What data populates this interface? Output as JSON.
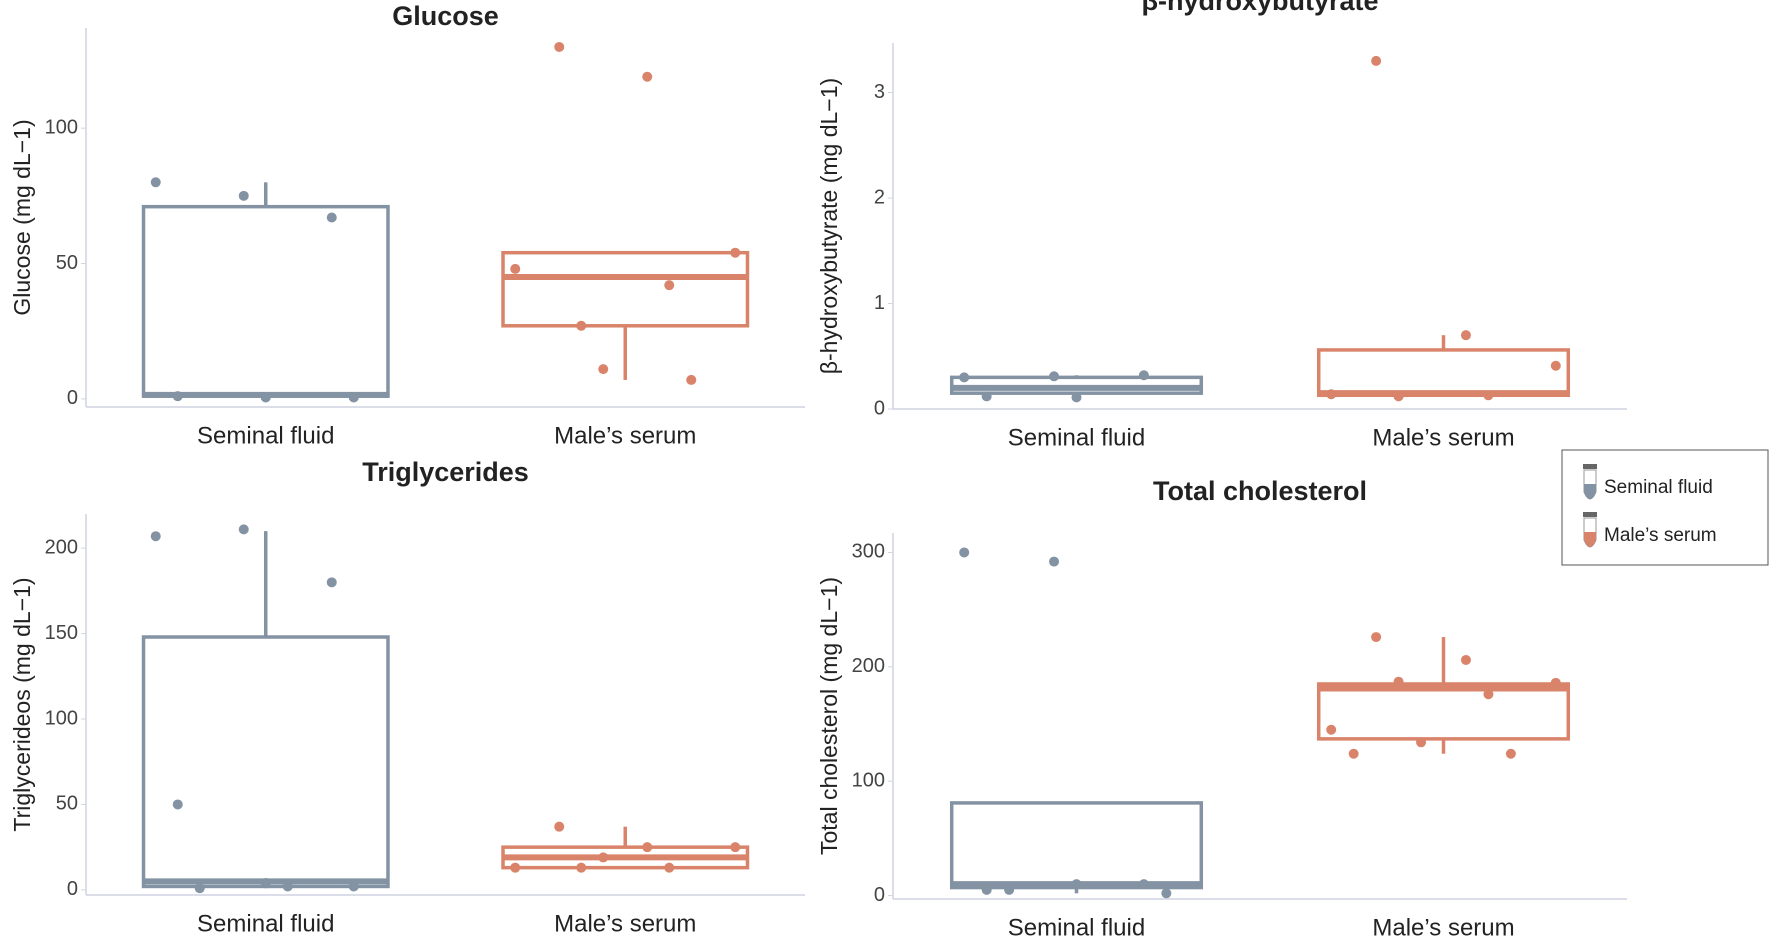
{
  "chart_data": [
    {
      "type": "box",
      "title": "Glucose",
      "ylabel": "Glucose (mg dL−1)",
      "categories": [
        "Seminal fluid",
        "Male’s serum"
      ],
      "ylim": [
        -3,
        137
      ],
      "yticks": [
        0,
        50,
        100
      ],
      "boxes": [
        {
          "color": "#8393a3",
          "q1": 1,
          "median": 1.5,
          "q3": 71,
          "whisker_low": 0,
          "whisker_high": 80,
          "points": [
            80,
            75,
            67,
            1,
            0.5,
            0.5
          ]
        },
        {
          "color": "#d9846a",
          "q1": 27,
          "median": 45,
          "q3": 54,
          "whisker_low": 7,
          "whisker_high": 54,
          "points": [
            130,
            119,
            54,
            27,
            42,
            48,
            11,
            7
          ]
        }
      ]
    },
    {
      "type": "box",
      "title": "β-hydroxybutyrate",
      "ylabel": "β-hydroxybutyrate (mg dL−1)",
      "categories": [
        "Seminal fluid",
        "Male’s serum"
      ],
      "ylim": [
        0,
        3.47
      ],
      "yticks": [
        0,
        1,
        2,
        3
      ],
      "boxes": [
        {
          "color": "#8393a3",
          "q1": 0.15,
          "median": 0.2,
          "q3": 0.3,
          "whisker_low": 0.12,
          "whisker_high": 0.32,
          "points": [
            0.3,
            0.31,
            0.32,
            0.12,
            0.11
          ]
        },
        {
          "color": "#d9846a",
          "q1": 0.13,
          "median": 0.15,
          "q3": 0.56,
          "whisker_low": 0.12,
          "whisker_high": 0.7,
          "points": [
            3.3,
            0.7,
            0.41,
            0.12,
            0.13,
            0.14
          ]
        }
      ]
    },
    {
      "type": "box",
      "title": "Triglycerides",
      "ylabel": "Triglycerideos (mg dL−1)",
      "categories": [
        "Seminal fluid",
        "Male’s serum"
      ],
      "ylim": [
        -3,
        220
      ],
      "yticks": [
        0,
        50,
        100,
        150,
        200
      ],
      "boxes": [
        {
          "color": "#8393a3",
          "q1": 2,
          "median": 5,
          "q3": 148,
          "whisker_low": 1,
          "whisker_high": 210,
          "points": [
            207,
            211,
            180,
            50,
            4,
            2,
            1,
            2
          ]
        },
        {
          "color": "#d9846a",
          "q1": 13,
          "median": 19,
          "q3": 25,
          "whisker_low": 13,
          "whisker_high": 37,
          "points": [
            37,
            25,
            25,
            13,
            13,
            13,
            19
          ]
        }
      ]
    },
    {
      "type": "box",
      "title": "Total cholesterol",
      "ylabel": "Total cholesterol (mg dL−1)",
      "categories": [
        "Seminal fluid",
        "Male’s serum"
      ],
      "ylim": [
        -3,
        317
      ],
      "yticks": [
        0,
        100,
        200,
        300
      ],
      "boxes": [
        {
          "color": "#8393a3",
          "q1": 7,
          "median": 10,
          "q3": 81,
          "whisker_low": 2,
          "whisker_high": 81,
          "points": [
            300,
            292,
            10,
            5,
            10,
            2,
            5
          ]
        },
        {
          "color": "#d9846a",
          "q1": 137,
          "median": 181,
          "q3": 185,
          "whisker_low": 124,
          "whisker_high": 226,
          "points": [
            226,
            206,
            186,
            187,
            176,
            145,
            134,
            124,
            124
          ]
        }
      ]
    }
  ],
  "legend": {
    "items": [
      {
        "name": "Seminal fluid",
        "color": "#8393a3"
      },
      {
        "name": "Male’s serum",
        "color": "#d9846a"
      }
    ]
  }
}
